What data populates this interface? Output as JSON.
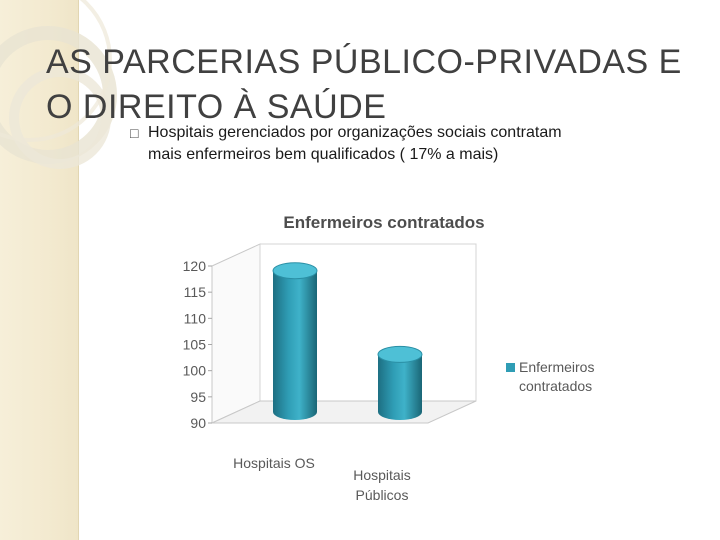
{
  "slide": {
    "title": "AS PARCERIAS PÚBLICO-PRIVADAS E O DIREITO À SAÚDE",
    "bullet_line1": "Hospitais gerenciados por organizações sociais contratam",
    "bullet_line2": "mais enfermeiros bem qualificados ( 17% a mais)"
  },
  "colors": {
    "accent": "#2f9db5",
    "sidebar": "#f3ead0"
  },
  "chart_data": {
    "type": "bar",
    "style": "3d-cylinder",
    "title": "Enfermeiros contratados",
    "categories": [
      "Hospitais OS",
      "Hospitais Públicos"
    ],
    "series": [
      {
        "name": "Enfermeiros contratados",
        "values": [
          117,
          101
        ]
      }
    ],
    "yticks": [
      120,
      115,
      110,
      105,
      100,
      95,
      90
    ],
    "ylim": [
      90,
      120
    ],
    "legend": "right",
    "grid": false
  }
}
